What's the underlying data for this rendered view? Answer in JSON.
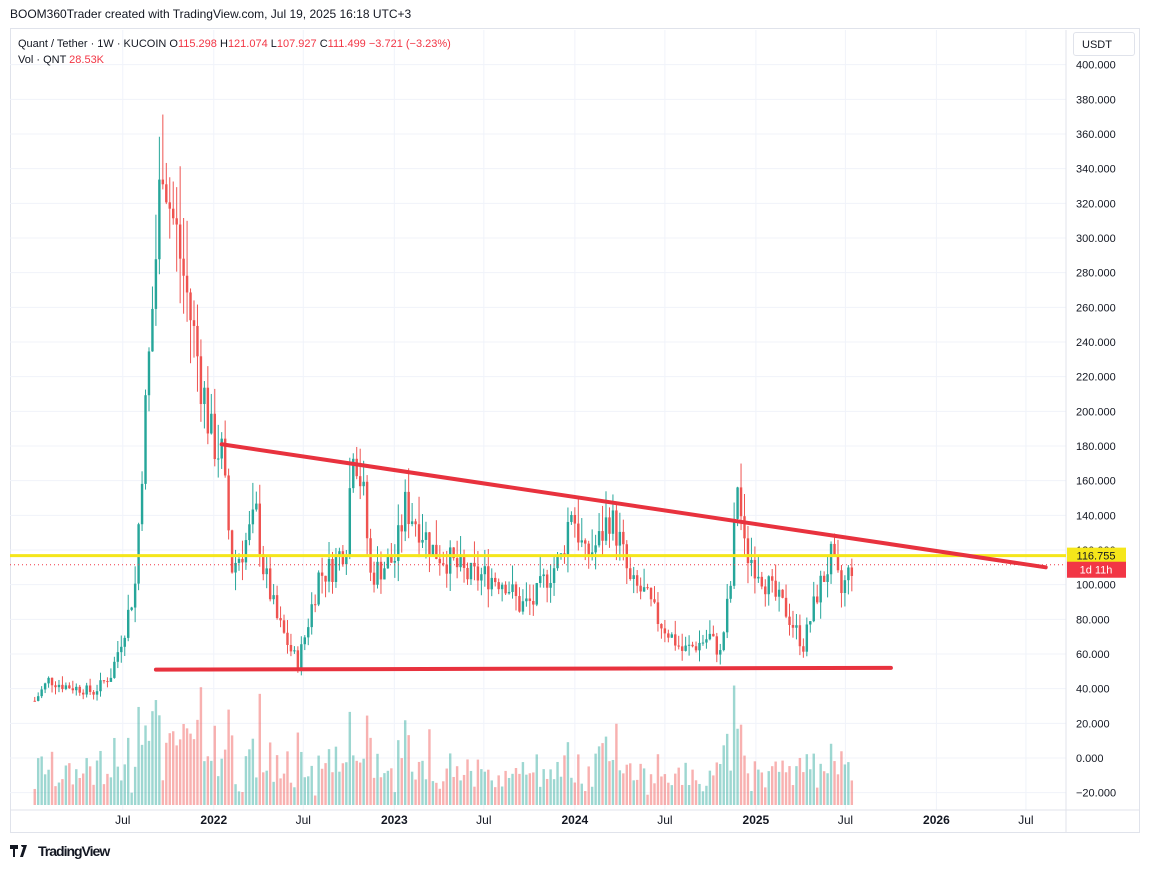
{
  "header": {
    "attribution": "BOOM360Trader created with TradingView.com, Jul 19, 2025 16:18 UTC+3"
  },
  "legend": {
    "symbol": "Quant / Tether · 1W · KUCOIN",
    "open_label": "O",
    "open": "115.298",
    "high_label": "H",
    "high": "121.074",
    "low_label": "L",
    "low": "107.927",
    "close_label": "C",
    "close": "111.499",
    "change": "−3.721 (−3.23%)",
    "volume_label": "Vol · QNT",
    "volume": "28.53K"
  },
  "currency_button": "USDT",
  "footer": {
    "logo_text": "TradingView",
    "logo_icon": "tradingview-logo-icon"
  },
  "colors": {
    "up": "#26a69a",
    "down": "#ef5350",
    "trendline": "#e8323e",
    "horizontal_level": "#f5e61a",
    "last_price_tag": "#f23645",
    "grid": "#f0f3fa"
  },
  "chart_data": {
    "type": "candlestick",
    "title": "Quant / Tether · 1W · KUCOIN",
    "timeframe": "1W",
    "ylim": [
      -30,
      420
    ],
    "y_ticks": [
      "400.000",
      "380.000",
      "360.000",
      "340.000",
      "320.000",
      "300.000",
      "280.000",
      "260.000",
      "240.000",
      "220.000",
      "200.000",
      "180.000",
      "160.000",
      "140.000",
      "120.000",
      "100.000",
      "80.000",
      "60.000",
      "40.000",
      "20.000",
      "0.000",
      "−20.000"
    ],
    "y_tick_values": [
      400,
      380,
      360,
      340,
      320,
      300,
      280,
      260,
      240,
      220,
      200,
      180,
      160,
      140,
      120,
      100,
      80,
      60,
      40,
      20,
      0,
      -20
    ],
    "x_ticks": [
      {
        "label": "Jul",
        "date": "2021-07-01",
        "bold": false
      },
      {
        "label": "2022",
        "date": "2022-01-01",
        "bold": true
      },
      {
        "label": "Jul",
        "date": "2022-07-01",
        "bold": false
      },
      {
        "label": "2023",
        "date": "2023-01-01",
        "bold": true
      },
      {
        "label": "Jul",
        "date": "2023-07-01",
        "bold": false
      },
      {
        "label": "2024",
        "date": "2024-01-01",
        "bold": true
      },
      {
        "label": "Jul",
        "date": "2024-07-01",
        "bold": false
      },
      {
        "label": "2025",
        "date": "2025-01-01",
        "bold": true
      },
      {
        "label": "Jul",
        "date": "2025-07-01",
        "bold": false
      },
      {
        "label": "2026",
        "date": "2026-01-01",
        "bold": true
      },
      {
        "label": "Jul",
        "date": "2026-07-01",
        "bold": false
      }
    ],
    "x_range": [
      "2020-11-15",
      "2026-09-20"
    ],
    "price_path": [
      [
        "2021-01-04",
        33
      ],
      [
        "2021-02-01",
        45
      ],
      [
        "2021-03-01",
        42
      ],
      [
        "2021-04-05",
        40
      ],
      [
        "2021-05-03",
        38
      ],
      [
        "2021-06-07",
        48
      ],
      [
        "2021-07-05",
        75
      ],
      [
        "2021-07-26",
        100
      ],
      [
        "2021-08-09",
        170
      ],
      [
        "2021-09-06",
        290
      ],
      [
        "2021-09-20",
        355
      ],
      [
        "2021-10-04",
        320
      ],
      [
        "2021-10-25",
        290
      ],
      [
        "2021-11-15",
        255
      ],
      [
        "2021-12-06",
        220
      ],
      [
        "2021-12-27",
        185
      ],
      [
        "2022-01-17",
        175
      ],
      [
        "2022-02-07",
        110
      ],
      [
        "2022-02-28",
        120
      ],
      [
        "2022-03-28",
        140
      ],
      [
        "2022-04-11",
        110
      ],
      [
        "2022-05-09",
        80
      ],
      [
        "2022-06-06",
        62
      ],
      [
        "2022-06-20",
        55
      ],
      [
        "2022-07-04",
        70
      ],
      [
        "2022-08-01",
        105
      ],
      [
        "2022-08-29",
        110
      ],
      [
        "2022-09-26",
        125
      ],
      [
        "2022-10-10",
        185
      ],
      [
        "2022-10-31",
        150
      ],
      [
        "2022-11-14",
        105
      ],
      [
        "2022-12-05",
        110
      ],
      [
        "2023-01-02",
        115
      ],
      [
        "2023-01-23",
        145
      ],
      [
        "2023-02-20",
        135
      ],
      [
        "2023-03-20",
        120
      ],
      [
        "2023-04-17",
        115
      ],
      [
        "2023-05-29",
        105
      ],
      [
        "2023-07-10",
        105
      ],
      [
        "2023-08-14",
        102
      ],
      [
        "2023-09-11",
        88
      ],
      [
        "2023-10-09",
        90
      ],
      [
        "2023-11-06",
        105
      ],
      [
        "2023-12-04",
        115
      ],
      [
        "2023-12-25",
        145
      ],
      [
        "2024-01-22",
        115
      ],
      [
        "2024-02-19",
        125
      ],
      [
        "2024-03-11",
        140
      ],
      [
        "2024-04-01",
        125
      ],
      [
        "2024-04-22",
        100
      ],
      [
        "2024-05-20",
        95
      ],
      [
        "2024-06-17",
        80
      ],
      [
        "2024-07-15",
        70
      ],
      [
        "2024-08-05",
        62
      ],
      [
        "2024-09-02",
        65
      ],
      [
        "2024-09-30",
        70
      ],
      [
        "2024-10-21",
        60
      ],
      [
        "2024-11-11",
        100
      ],
      [
        "2024-11-25",
        160
      ],
      [
        "2024-12-09",
        120
      ],
      [
        "2025-01-06",
        110
      ],
      [
        "2025-02-03",
        95
      ],
      [
        "2025-03-03",
        85
      ],
      [
        "2025-04-07",
        65
      ],
      [
        "2025-05-05",
        95
      ],
      [
        "2025-06-02",
        115
      ],
      [
        "2025-06-23",
        95
      ],
      [
        "2025-07-14",
        111.5
      ]
    ],
    "volume_scale_note": "volume drawn as histogram at bottom of pane",
    "trendlines": [
      {
        "name": "descending-resistance",
        "start": [
          "2022-01-17",
          181
        ],
        "end": [
          "2026-08-10",
          110
        ]
      },
      {
        "name": "horizontal-support",
        "start": [
          "2021-09-06",
          51
        ],
        "end": [
          "2025-10-01",
          52
        ]
      }
    ],
    "horizontal_level": {
      "value": 116.755,
      "label": "116.755"
    },
    "last_price": {
      "value": 111.499,
      "countdown": "1d 11h"
    }
  }
}
